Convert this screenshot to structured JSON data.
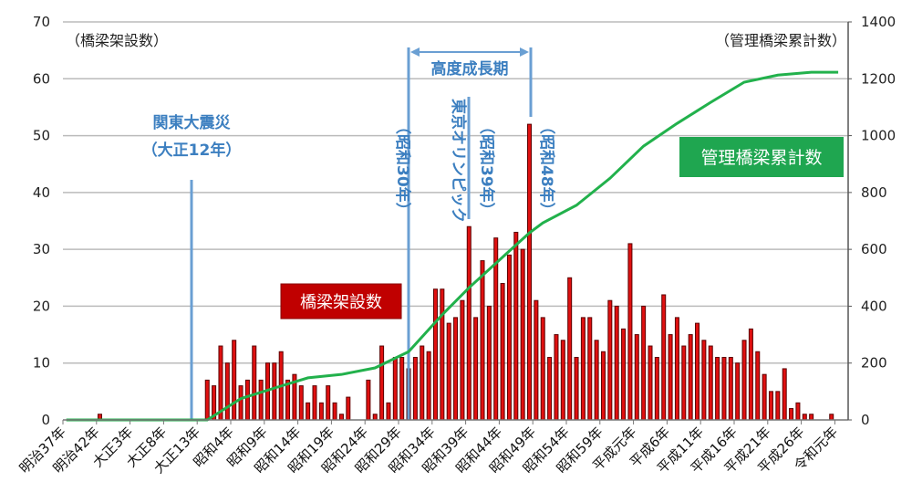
{
  "chart_data": {
    "type": "bar",
    "title": "",
    "ylabel": "（橋梁架設数）",
    "y2label": "（管理橋梁累計数）",
    "ylim": [
      0,
      70
    ],
    "y2lim": [
      0,
      1400
    ],
    "yticks": [
      "0",
      "10",
      "20",
      "30",
      "40",
      "50",
      "60",
      "70"
    ],
    "y2ticks": [
      "0",
      "200",
      "400",
      "600",
      "800",
      "1000",
      "1200",
      "1400"
    ],
    "start_year": 1904,
    "xtick_labels": [
      "明治37年",
      "明治42年",
      "大正3年",
      "大正8年",
      "大正13年",
      "昭和4年",
      "昭和9年",
      "昭和14年",
      "昭和19年",
      "昭和24年",
      "昭和29年",
      "昭和34年",
      "昭和39年",
      "昭和44年",
      "昭和49年",
      "昭和54年",
      "昭和59年",
      "平成元年",
      "平成6年",
      "平成11年",
      "平成16年",
      "平成21年",
      "平成26年",
      "令和元年"
    ],
    "series": [
      {
        "name": "橋梁架設数",
        "type": "bar",
        "color": "#e01010",
        "values": [
          0,
          0,
          0,
          0,
          0,
          1,
          0,
          0,
          0,
          0,
          0,
          0,
          0,
          0,
          0,
          0,
          0,
          0,
          0,
          0,
          0,
          7,
          6,
          13,
          10,
          14,
          6,
          7,
          13,
          7,
          10,
          10,
          12,
          7,
          8,
          6,
          3,
          6,
          3,
          6,
          3,
          1,
          4,
          0,
          0,
          7,
          1,
          13,
          3,
          11,
          11,
          9,
          11,
          13,
          12,
          23,
          23,
          17,
          18,
          21,
          34,
          18,
          28,
          20,
          32,
          24,
          29,
          33,
          30,
          52,
          21,
          18,
          11,
          15,
          14,
          25,
          11,
          18,
          18,
          14,
          12,
          21,
          20,
          16,
          31,
          15,
          20,
          13,
          11,
          22,
          15,
          18,
          13,
          15,
          17,
          14,
          13,
          11,
          11,
          11,
          10,
          14,
          16,
          12,
          8,
          5,
          5,
          9,
          2,
          3,
          1,
          1,
          0,
          0,
          1,
          0
        ]
      },
      {
        "name": "管理橋梁累計数",
        "type": "line",
        "axis": "right",
        "color": "#22b14c",
        "x": [
          1904,
          1924,
          1925,
          1930,
          1935,
          1940,
          1945,
          1950,
          1955,
          1960,
          1964,
          1970,
          1973,
          1975,
          1980,
          1985,
          1990,
          1995,
          2000,
          2005,
          2010,
          2015,
          2019
        ],
        "values": [
          0,
          0,
          0,
          75,
          112,
          148,
          160,
          183,
          240,
          370,
          465,
          594,
          658,
          693,
          755,
          850,
          963,
          1043,
          1117,
          1188,
          1213,
          1223,
          1223
        ]
      }
    ],
    "annotations": {
      "earthquake": [
        "関東大震災",
        "（大正12年）"
      ],
      "growth": "高度成長期",
      "s30": "（昭和30年）",
      "olympic": "東京オリンピック",
      "s39": "（昭和39年）",
      "s48": "（昭和48年）",
      "bar_label": "橋梁架設数",
      "line_label": "管理橋梁累計数"
    },
    "colors": {
      "annotation": "#3c7fc0",
      "bar_border": "#5a0000",
      "label_red": "#c00000",
      "label_green": "#1fa650"
    },
    "grid": true
  }
}
